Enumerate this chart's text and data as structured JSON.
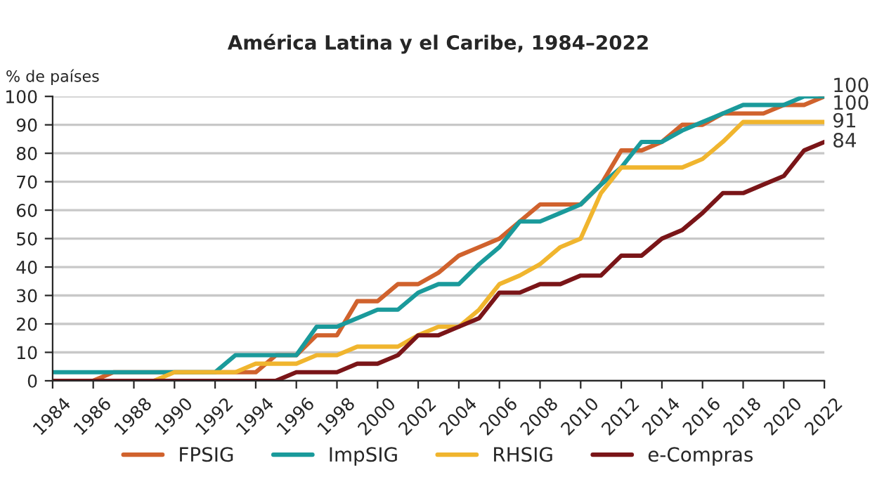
{
  "chart_data": {
    "type": "line",
    "title": "América Latina y el Caribe, 1984–2022",
    "ylabel": "% de países",
    "x": [
      1984,
      1985,
      1986,
      1987,
      1988,
      1989,
      1990,
      1991,
      1992,
      1993,
      1994,
      1995,
      1996,
      1997,
      1998,
      1999,
      2000,
      2001,
      2002,
      2003,
      2004,
      2005,
      2006,
      2007,
      2008,
      2009,
      2010,
      2011,
      2012,
      2013,
      2014,
      2015,
      2016,
      2017,
      2018,
      2019,
      2020,
      2021,
      2022
    ],
    "series": [
      {
        "name": "FPSIG",
        "color": "#d0622d",
        "values": [
          0,
          0,
          0,
          3,
          3,
          3,
          3,
          3,
          3,
          3,
          3,
          9,
          9,
          16,
          16,
          28,
          28,
          34,
          34,
          38,
          44,
          47,
          50,
          56,
          62,
          62,
          62,
          69,
          81,
          81,
          84,
          90,
          90,
          94,
          94,
          94,
          97,
          97,
          100
        ]
      },
      {
        "name": "ImpSIG",
        "color": "#1a9a9b",
        "values": [
          3,
          3,
          3,
          3,
          3,
          3,
          3,
          3,
          3,
          9,
          9,
          9,
          9,
          19,
          19,
          22,
          25,
          25,
          31,
          34,
          34,
          41,
          47,
          56,
          56,
          59,
          62,
          69,
          75,
          84,
          84,
          88,
          91,
          94,
          97,
          97,
          97,
          100,
          100
        ]
      },
      {
        "name": "RHSIG",
        "color": "#f0b52e",
        "values": [
          null,
          null,
          null,
          null,
          0,
          0,
          3,
          3,
          3,
          3,
          6,
          6,
          6,
          9,
          9,
          12,
          12,
          12,
          16,
          19,
          19,
          25,
          34,
          37,
          41,
          47,
          50,
          66,
          75,
          75,
          75,
          75,
          78,
          84,
          91,
          91,
          91,
          91,
          91
        ]
      },
      {
        "name": "e-Compras",
        "color": "#7a1518",
        "values": [
          0,
          0,
          0,
          0,
          0,
          0,
          0,
          0,
          0,
          0,
          0,
          0,
          3,
          3,
          3,
          6,
          6,
          9,
          16,
          16,
          19,
          22,
          31,
          31,
          34,
          34,
          37,
          37,
          44,
          44,
          50,
          53,
          59,
          66,
          66,
          69,
          72,
          81,
          84
        ]
      }
    ],
    "xlim": [
      1984,
      2022
    ],
    "xticks": [
      1984,
      1986,
      1988,
      1990,
      1992,
      1994,
      1996,
      1998,
      2000,
      2002,
      2004,
      2006,
      2008,
      2010,
      2012,
      2014,
      2016,
      2018,
      2020,
      2022
    ],
    "ylim": [
      0,
      100
    ],
    "yticks": [
      0,
      10,
      20,
      30,
      40,
      50,
      60,
      70,
      80,
      90,
      100
    ],
    "grid": "y",
    "legend": "bottom",
    "marker": "none",
    "line_style": "solid",
    "annotations": [
      "100",
      "100",
      "91",
      "84"
    ]
  }
}
